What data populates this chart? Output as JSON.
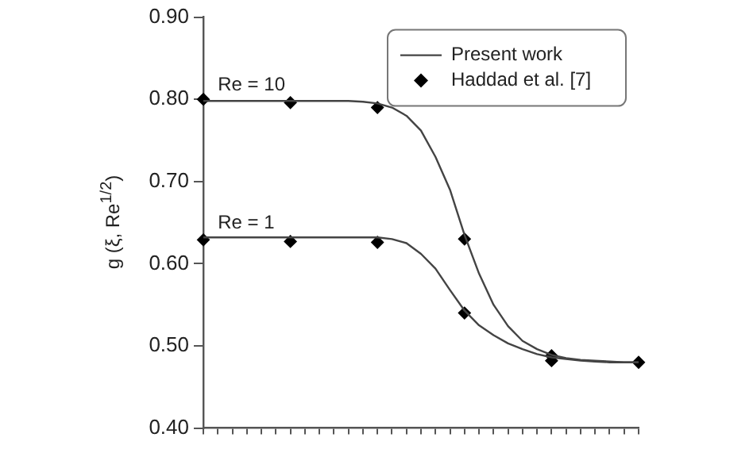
{
  "chart_data": {
    "type": "line",
    "ylabel": "g (ξ, Re$^{1/2}$)",
    "categories": [
      null,
      null,
      null,
      null,
      null,
      null,
      null,
      null,
      null,
      null,
      null,
      null,
      null,
      null,
      null,
      null,
      null,
      null,
      null,
      null,
      null,
      null,
      null,
      null,
      null,
      null,
      null,
      null,
      null,
      null,
      null
    ],
    "series": [
      {
        "name": "Present work",
        "type": "line",
        "color": "#444444",
        "marker": "none",
        "line_style": "solid",
        "values": [
          0.798,
          0.798,
          0.798,
          0.798,
          0.798,
          0.798,
          0.798,
          0.798,
          0.798,
          0.798,
          0.798,
          0.797,
          0.795,
          0.79,
          0.78,
          0.762,
          0.73,
          0.69,
          0.635,
          0.588,
          0.55,
          0.524,
          0.506,
          0.496,
          0.489,
          0.485,
          0.483,
          0.482,
          0.481,
          0.48,
          0.48
        ]
      },
      {
        "type": "line",
        "color": "#444444",
        "marker": "none",
        "line_style": "solid",
        "values": [
          0.632,
          0.632,
          0.632,
          0.632,
          0.632,
          0.632,
          0.632,
          0.632,
          0.632,
          0.632,
          0.632,
          0.632,
          0.632,
          0.63,
          0.625,
          0.612,
          0.594,
          0.568,
          0.543,
          0.525,
          0.513,
          0.503,
          0.496,
          0.49,
          0.486,
          0.484,
          0.482,
          0.481,
          0.48,
          0.48,
          0.48
        ]
      },
      {
        "name": "Haddad et al. [7]",
        "type": "scatter",
        "color": "#000000",
        "marker": "diamond",
        "values": [
          0.8,
          null,
          null,
          null,
          null,
          null,
          0.796,
          null,
          null,
          null,
          null,
          null,
          0.79,
          null,
          null,
          null,
          null,
          null,
          0.63,
          null,
          null,
          null,
          null,
          null,
          0.488,
          null,
          null,
          null,
          null,
          null,
          0.48
        ]
      },
      {
        "type": "scatter",
        "color": "#000000",
        "marker": "diamond",
        "values": [
          0.629,
          null,
          null,
          null,
          null,
          null,
          0.627,
          null,
          null,
          null,
          null,
          null,
          0.626,
          null,
          null,
          null,
          null,
          null,
          0.54,
          null,
          null,
          null,
          null,
          null,
          0.482,
          null,
          null,
          null,
          null,
          null,
          null
        ]
      }
    ],
    "annotations": [
      {
        "text": "Re = 10",
        "y": 0.8
      },
      {
        "text": "Re = 1",
        "y": 0.632
      }
    ],
    "ylim": [
      0.4,
      0.9
    ],
    "yticks": [
      {
        "value": 0.4,
        "label": "0.40"
      },
      {
        "value": 0.5,
        "label": "0.50"
      },
      {
        "value": 0.6,
        "label": "0.60"
      },
      {
        "value": 0.7,
        "label": "0.70"
      },
      {
        "value": 0.8,
        "label": "0.80"
      },
      {
        "value": 0.9,
        "label": "0.90"
      }
    ],
    "grid": false,
    "legend": "top right"
  }
}
